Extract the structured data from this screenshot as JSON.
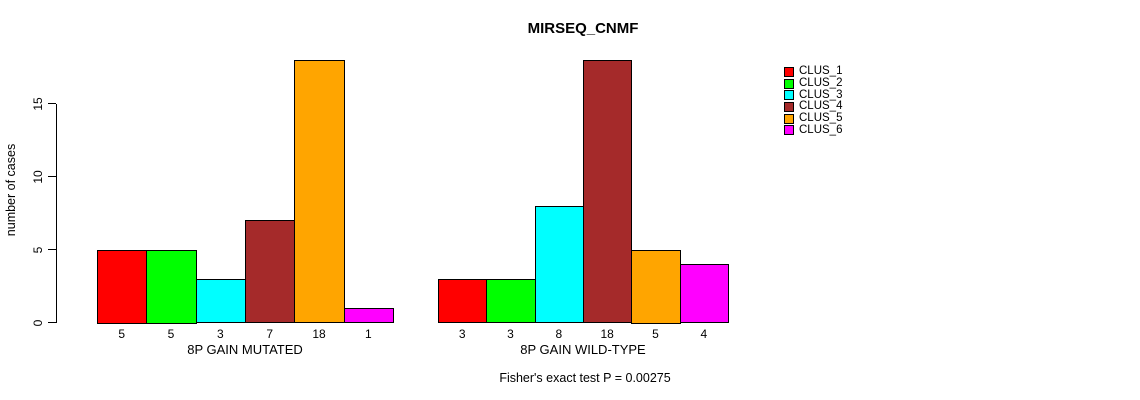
{
  "title": "MIRSEQ_CNMF",
  "y_axis": {
    "label": "number of cases",
    "ticks": [
      0,
      5,
      10,
      15
    ],
    "range": [
      0,
      15
    ]
  },
  "footer": "Fisher's exact test P = 0.00275",
  "legend": {
    "position": "top-right",
    "items": [
      {
        "label": "CLUS_1",
        "color": "#FF0000"
      },
      {
        "label": "CLUS_2",
        "color": "#00FF00"
      },
      {
        "label": "CLUS_3",
        "color": "#00FFFF"
      },
      {
        "label": "CLUS_4",
        "color": "#A52A2A"
      },
      {
        "label": "CLUS_5",
        "color": "#FFA500"
      },
      {
        "label": "CLUS_6",
        "color": "#FF00FF"
      }
    ]
  },
  "chart_data": [
    {
      "type": "bar",
      "title": "MIRSEQ_CNMF",
      "xlabel": "8P GAIN MUTATED",
      "ylabel": "number of cases",
      "categories": [
        "CLUS_1",
        "CLUS_2",
        "CLUS_3",
        "CLUS_4",
        "CLUS_5",
        "CLUS_6"
      ],
      "values": [
        5,
        5,
        3,
        7,
        18,
        1
      ],
      "bar_value_labels": [
        "5",
        "5",
        "3",
        "7",
        "18",
        "1"
      ],
      "colors": [
        "#FF0000",
        "#00FF00",
        "#00FFFF",
        "#A52A2A",
        "#FFA500",
        "#FF00FF"
      ],
      "ylim": [
        0,
        15
      ],
      "yticks": [
        0,
        5,
        10,
        15
      ],
      "grid": false,
      "show_y_axis": true
    },
    {
      "type": "bar",
      "title": "MIRSEQ_CNMF",
      "xlabel": "8P GAIN WILD-TYPE",
      "ylabel": "number of cases",
      "categories": [
        "CLUS_1",
        "CLUS_2",
        "CLUS_3",
        "CLUS_4",
        "CLUS_5",
        "CLUS_6"
      ],
      "values": [
        3,
        3,
        8,
        18,
        5,
        4
      ],
      "bar_value_labels": [
        "3",
        "3",
        "8",
        "18",
        "5",
        "4"
      ],
      "colors": [
        "#FF0000",
        "#00FF00",
        "#00FFFF",
        "#A52A2A",
        "#FFA500",
        "#FF00FF"
      ],
      "ylim": [
        0,
        15
      ],
      "yticks": [
        0,
        5,
        10,
        15
      ],
      "grid": false,
      "show_y_axis": false
    }
  ]
}
